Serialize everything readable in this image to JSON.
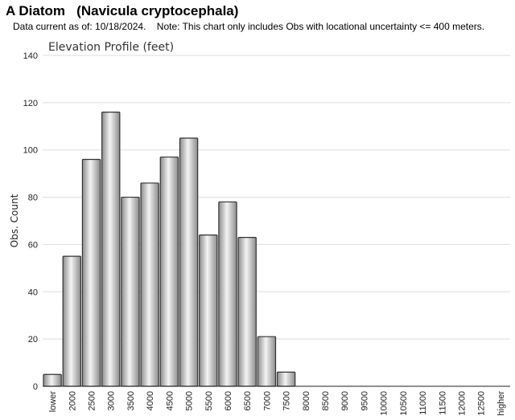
{
  "header": {
    "common_name": "A Diatom",
    "scientific_name": "(Navicula cryptocephala)",
    "data_date": "Data current as of: 10/18/2024.",
    "note": "Note: This chart only includes Obs with locational uncertainty <= 400 meters."
  },
  "chart_data": {
    "type": "bar",
    "title": "Elevation Profile (feet)",
    "xlabel": "",
    "ylabel": "Obs. Count",
    "ylim": [
      0,
      140
    ],
    "yticks": [
      0,
      20,
      40,
      60,
      80,
      100,
      120,
      140
    ],
    "grid": true,
    "categories": [
      "lower",
      "2000",
      "2500",
      "3000",
      "3500",
      "4000",
      "4500",
      "5000",
      "5500",
      "6000",
      "6500",
      "7000",
      "7500",
      "8000",
      "8500",
      "9000",
      "9500",
      "10000",
      "10500",
      "11000",
      "11500",
      "12000",
      "12500",
      "higher"
    ],
    "values": [
      5,
      55,
      96,
      116,
      80,
      86,
      97,
      105,
      64,
      78,
      63,
      21,
      6,
      0,
      0,
      0,
      0,
      0,
      0,
      0,
      0,
      0,
      0,
      0
    ],
    "colors": {
      "bar_fill_light": "#f4f4f4",
      "bar_fill_dark": "#8c8c8c",
      "bar_stroke": "#333333",
      "grid": "#dddddd"
    }
  }
}
